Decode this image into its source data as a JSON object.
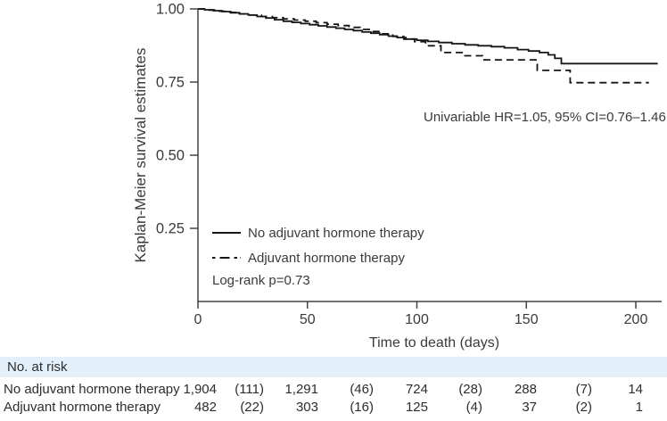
{
  "colors": {
    "curve": "#161616",
    "axis": "#444444",
    "text": "#3a3a3a",
    "table_text": "#2d2d2d",
    "risk_header_bg": "#e3f0fa",
    "background": "#ffffff"
  },
  "chart": {
    "y_axis": {
      "label": "Kaplan-Meier survival estimates",
      "ticks": [
        "1.00",
        "0.75",
        "0.50",
        "0.25"
      ],
      "tick_values": [
        1.0,
        0.75,
        0.5,
        0.25
      ]
    },
    "x_axis": {
      "label": "Time to death (days)",
      "ticks": [
        "0",
        "50",
        "100",
        "150",
        "200"
      ],
      "tick_values": [
        0,
        50,
        100,
        150,
        200
      ]
    },
    "annotation": "Univariable HR=1.05, 95% CI=0.76–1.46",
    "legend": [
      {
        "label": "No adjuvant hormone therapy",
        "style": "solid"
      },
      {
        "label": "Adjuvant hormone therapy",
        "style": "dashed"
      }
    ],
    "logrank": "Log-rank p=0.73"
  },
  "chart_data": {
    "type": "line",
    "subtype": "kaplan-meier-step",
    "xlabel": "Time to death (days)",
    "ylabel": "Kaplan-Meier survival estimates",
    "xlim": [
      0,
      212
    ],
    "ylim": [
      0,
      1.0
    ],
    "grid": false,
    "legend_position": "inside-lower-left",
    "annotation": "Univariable HR=1.05, 95% CI=0.76–1.46",
    "logrank": "Log-rank p=0.73",
    "series": [
      {
        "name": "No adjuvant hormone therapy",
        "line": "solid",
        "points": [
          [
            0,
            1.0
          ],
          [
            3,
            0.997
          ],
          [
            7,
            0.994
          ],
          [
            11,
            0.991
          ],
          [
            15,
            0.987
          ],
          [
            19,
            0.983
          ],
          [
            23,
            0.979
          ],
          [
            27,
            0.974
          ],
          [
            31,
            0.969
          ],
          [
            35,
            0.963
          ],
          [
            39,
            0.958
          ],
          [
            43,
            0.954
          ],
          [
            47,
            0.95
          ],
          [
            51,
            0.946
          ],
          [
            55,
            0.942
          ],
          [
            59,
            0.938
          ],
          [
            63,
            0.934
          ],
          [
            67,
            0.93
          ],
          [
            71,
            0.926
          ],
          [
            75,
            0.921
          ],
          [
            79,
            0.917
          ],
          [
            83,
            0.912
          ],
          [
            87,
            0.907
          ],
          [
            91,
            0.902
          ],
          [
            95,
            0.897
          ],
          [
            100,
            0.893
          ],
          [
            105,
            0.889
          ],
          [
            110,
            0.885
          ],
          [
            116,
            0.881
          ],
          [
            122,
            0.877
          ],
          [
            128,
            0.874
          ],
          [
            134,
            0.871
          ],
          [
            140,
            0.867
          ],
          [
            146,
            0.861
          ],
          [
            151,
            0.856
          ],
          [
            156,
            0.851
          ],
          [
            160,
            0.843
          ],
          [
            163,
            0.831
          ],
          [
            166,
            0.813
          ],
          [
            210,
            0.813
          ]
        ]
      },
      {
        "name": "Adjuvant hormone therapy",
        "line": "dashed",
        "points": [
          [
            0,
            1.0
          ],
          [
            4,
            0.996
          ],
          [
            9,
            0.992
          ],
          [
            14,
            0.988
          ],
          [
            19,
            0.983
          ],
          [
            24,
            0.979
          ],
          [
            29,
            0.974
          ],
          [
            34,
            0.97
          ],
          [
            39,
            0.966
          ],
          [
            44,
            0.962
          ],
          [
            49,
            0.958
          ],
          [
            54,
            0.953
          ],
          [
            59,
            0.948
          ],
          [
            64,
            0.943
          ],
          [
            69,
            0.937
          ],
          [
            74,
            0.93
          ],
          [
            79,
            0.923
          ],
          [
            84,
            0.915
          ],
          [
            89,
            0.906
          ],
          [
            94,
            0.897
          ],
          [
            99,
            0.888
          ],
          [
            104,
            0.874
          ],
          [
            111,
            0.851
          ],
          [
            121,
            0.84
          ],
          [
            130,
            0.826
          ],
          [
            155,
            0.79
          ],
          [
            170,
            0.748
          ],
          [
            206,
            0.748
          ]
        ]
      }
    ]
  },
  "risk_table": {
    "header": "No. at risk",
    "rows": [
      {
        "label": "No adjuvant hormone therapy",
        "values": [
          "1,904",
          "(111)",
          "1,291",
          "(46)",
          "724",
          "(28)",
          "288",
          "(7)",
          "14"
        ]
      },
      {
        "label": "Adjuvant hormone therapy",
        "values": [
          "482",
          "(22)",
          "303",
          "(16)",
          "125",
          "(4)",
          "37",
          "(2)",
          "1"
        ]
      }
    ]
  }
}
